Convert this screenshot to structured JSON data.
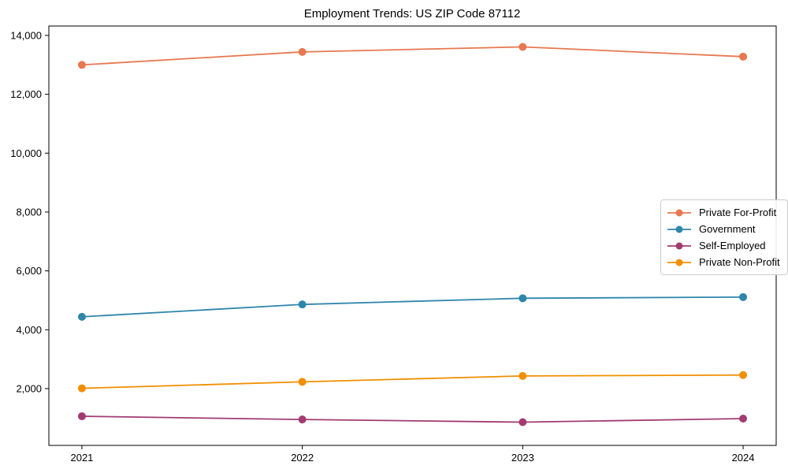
{
  "page": {
    "title": "Employment Trends: US ZIP Code 87112"
  },
  "chart_data": {
    "type": "line",
    "title": "Employment Trends: US ZIP Code 87112",
    "xlabel": "",
    "ylabel": "",
    "categories": [
      "2021",
      "2022",
      "2023",
      "2024"
    ],
    "series": [
      {
        "name": "Private For-Profit",
        "color": "#e8784f",
        "values": [
          13000,
          13440,
          13610,
          13280
        ]
      },
      {
        "name": "Government",
        "color": "#2e86ab",
        "values": [
          4440,
          4860,
          5070,
          5110
        ]
      },
      {
        "name": "Self-Employed",
        "color": "#a23b72",
        "values": [
          1060,
          950,
          860,
          980
        ]
      },
      {
        "name": "Private Non-Profit",
        "color": "#f18f01",
        "values": [
          2010,
          2230,
          2430,
          2460
        ]
      }
    ],
    "yticks": [
      2000,
      4000,
      6000,
      8000,
      10000,
      12000,
      14000
    ],
    "ytick_labels": [
      "2,000",
      "4,000",
      "6,000",
      "8,000",
      "10,000",
      "12,000",
      "14,000"
    ],
    "ylim": [
      70,
      14320
    ],
    "grid": false,
    "legend_position": "center-right",
    "marker": "circle",
    "axis_color": "#000000"
  }
}
